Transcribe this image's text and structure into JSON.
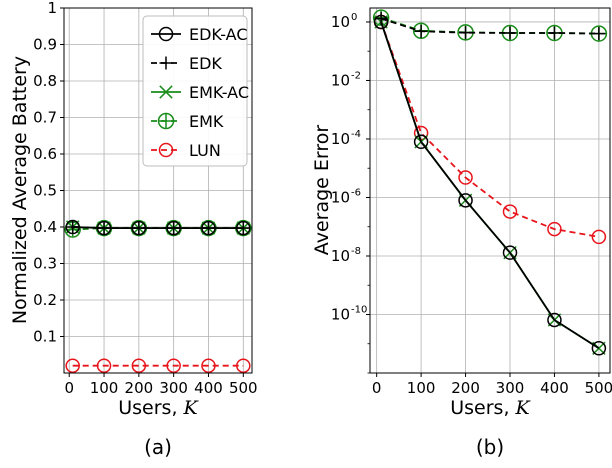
{
  "chart_data": [
    {
      "type": "line",
      "panel_label": "(a)",
      "xlabel": "Users, K",
      "ylabel": "Normalized Average Battery",
      "x": [
        10,
        100,
        200,
        300,
        400,
        500
      ],
      "xticks": [
        "0",
        "100",
        "200",
        "300",
        "400",
        "500"
      ],
      "xlim": [
        -15,
        525
      ],
      "ylim": [
        0,
        1
      ],
      "yticks": [
        "0.1",
        "0.2",
        "0.3",
        "0.4",
        "0.5",
        "0.6",
        "0.7",
        "0.8",
        "0.9",
        "1"
      ],
      "grid": true,
      "legend_position": "top-right",
      "series": [
        {
          "name": "EDK-AC",
          "color": "#000000",
          "linestyle": "solid",
          "marker": "circle",
          "values": [
            0.4,
            0.397,
            0.397,
            0.397,
            0.397,
            0.397
          ]
        },
        {
          "name": "EDK",
          "color": "#000000",
          "linestyle": "dashed",
          "marker": "plus",
          "values": [
            0.4,
            0.397,
            0.397,
            0.397,
            0.397,
            0.397
          ]
        },
        {
          "name": "EMK-AC",
          "color": "#1a8c1a",
          "linestyle": "solid",
          "marker": "x",
          "values": [
            0.4,
            0.397,
            0.397,
            0.397,
            0.397,
            0.397
          ]
        },
        {
          "name": "EMK",
          "color": "#1a8c1a",
          "linestyle": "dashed",
          "marker": "circle-plus",
          "values": [
            0.393,
            0.397,
            0.397,
            0.397,
            0.397,
            0.397
          ]
        },
        {
          "name": "LUN",
          "color": "#e8141b",
          "linestyle": "dashed",
          "marker": "circle",
          "values": [
            0.02,
            0.02,
            0.02,
            0.02,
            0.02,
            0.02
          ]
        }
      ]
    },
    {
      "type": "line",
      "panel_label": "(b)",
      "xlabel": "Users, K",
      "ylabel": "Average Error",
      "x": [
        10,
        100,
        200,
        300,
        400,
        500
      ],
      "xticks": [
        "0",
        "100",
        "200",
        "300",
        "400",
        "500"
      ],
      "xlim": [
        -15,
        525
      ],
      "ylim": [
        1e-12,
        3
      ],
      "yscale": "log",
      "yticks": [
        1,
        0.01,
        0.0001,
        1e-06,
        1e-08,
        1e-10
      ],
      "ytick_labels": [
        "10^0",
        "10^-2",
        "10^-4",
        "10^-6",
        "10^-8",
        "10^-10"
      ],
      "grid": true,
      "series": [
        {
          "name": "EDK-AC",
          "color": "#000000",
          "linestyle": "solid",
          "marker": "circle",
          "values": [
            1.0,
            8e-05,
            8e-07,
            1.3e-08,
            6.5e-11,
            7e-12
          ]
        },
        {
          "name": "EDK",
          "color": "#000000",
          "linestyle": "dashed",
          "marker": "plus",
          "values": [
            1.3,
            0.48,
            0.43,
            0.42,
            0.42,
            0.4
          ]
        },
        {
          "name": "EMK-AC",
          "color": "#1a8c1a",
          "linestyle": "solid",
          "marker": "x",
          "values": [
            1.0,
            8e-05,
            8e-07,
            1.3e-08,
            6.5e-11,
            7e-12
          ]
        },
        {
          "name": "EMK",
          "color": "#1a8c1a",
          "linestyle": "dashed",
          "marker": "circle-plus",
          "values": [
            1.4,
            0.5,
            0.44,
            0.42,
            0.42,
            0.4
          ]
        },
        {
          "name": "LUN",
          "color": "#e8141b",
          "linestyle": "dashed",
          "marker": "circle",
          "values": [
            1.0,
            0.00016,
            4.8e-06,
            3.3e-07,
            8.3e-08,
            4.5e-08
          ]
        }
      ]
    }
  ]
}
